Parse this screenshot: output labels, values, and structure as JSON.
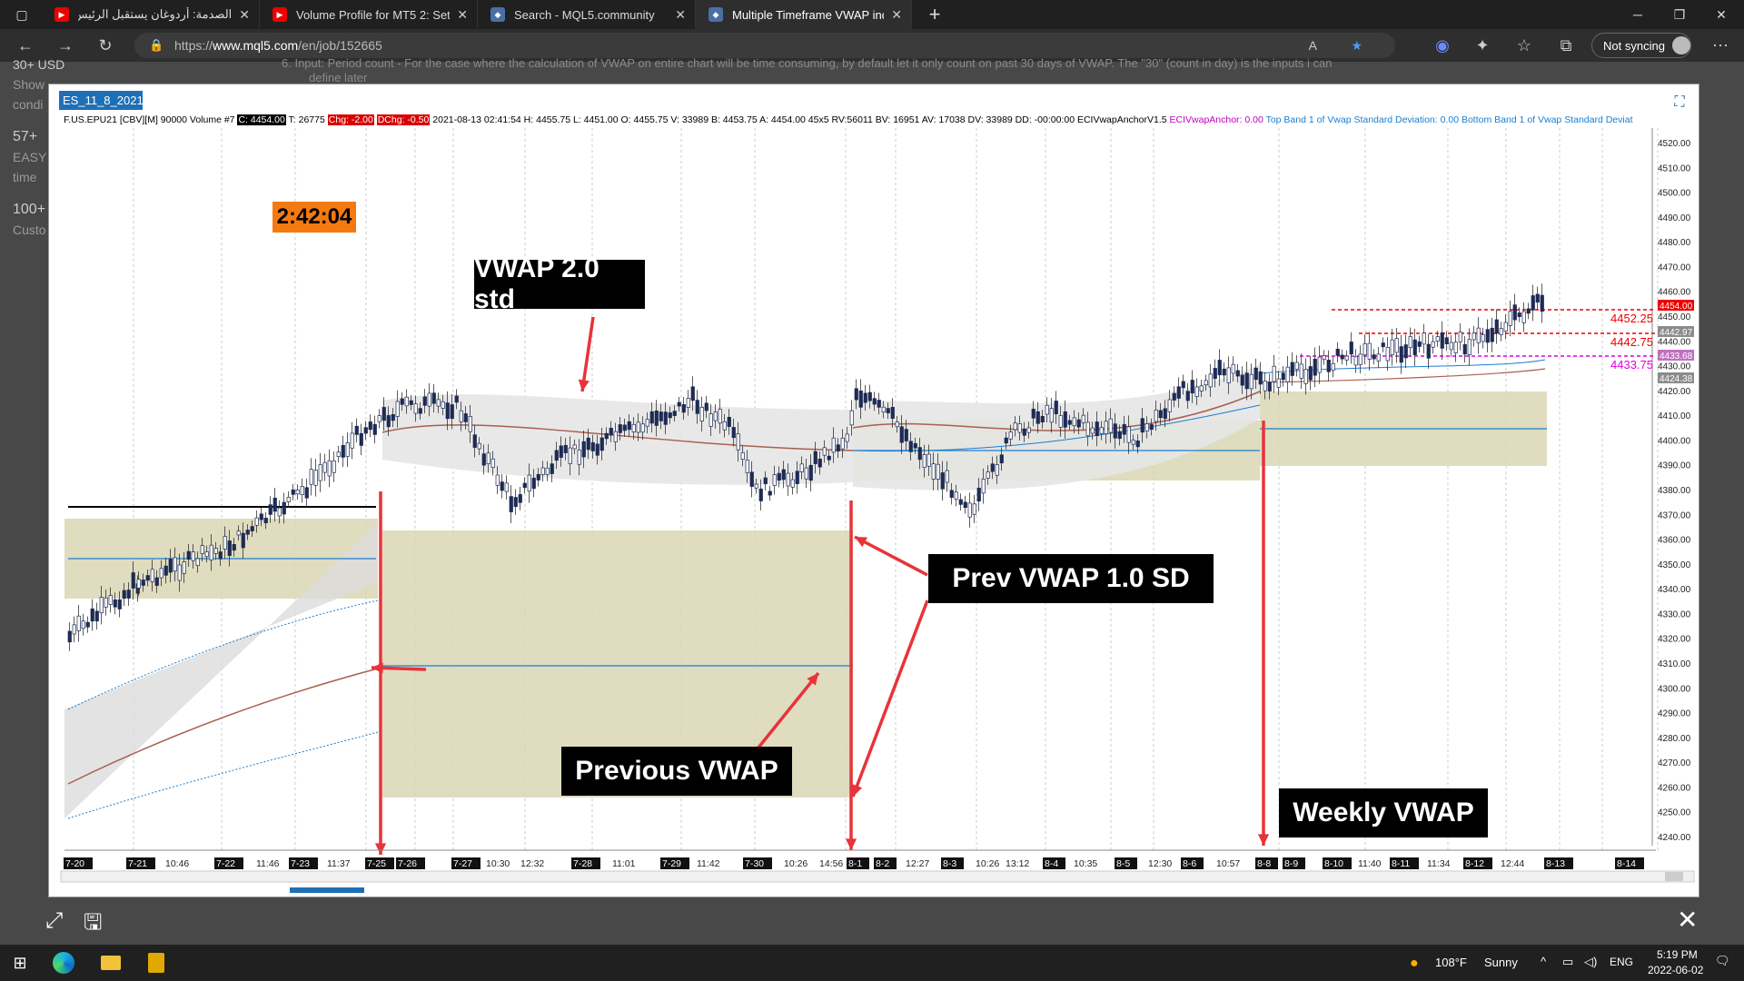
{
  "browser": {
    "tabs": [
      {
        "title": "الصدمة: أردوغان يستقبل الرئيس الإ",
        "icon": "youtube-icon"
      },
      {
        "title": "Volume Profile for MT5 2: Setting",
        "icon": "youtube-icon"
      },
      {
        "title": "Search - MQL5.community",
        "icon": "mql5-icon"
      },
      {
        "title": "Multiple Timeframe VWAP indica",
        "icon": "mql5-icon",
        "active": true
      }
    ],
    "url_prefix": "https://",
    "url_host": "www.mql5.com",
    "url_path": "/en/job/152665",
    "sync_label": "Not syncing"
  },
  "page_bg_text": {
    "line1": "30+ USD",
    "line2": "Show",
    "line3": "condi",
    "line4": "57+",
    "line5": "EASY",
    "line6": "time",
    "line7": "100+",
    "line8": "Custo",
    "top_text": "6. Input: Period count - For the case where the calculation of VWAP on entire chart will be time consuming, by default let it only count on past 30 days of VWAP. The \"30\" (count in day) is the inputs i can",
    "top_text2": "define later"
  },
  "chart": {
    "title_tab": "ES_11_8_2021",
    "info": {
      "symbol": "F.US.EPU21 [CBV][M]  90000 Volume  #7",
      "close": "C: 4454.00",
      "t": "T: 26775",
      "chg": "Chg: -2.00",
      "dchg": "DChg: -0.50",
      "rest": "2021-08-13 02:41:54 H: 4455.75 L: 4451.00 O: 4455.75 V: 33989 B: 4453.75 A: 4454.00 45x5 RV:56011 BV: 16951 AV: 17038 DV: 33989 DD: -00:00:00 ECIVwapAnchorV1.5",
      "anchor": "ECIVwapAnchor: 0.00",
      "bands": "Top Band 1 of Vwap Standard Deviation: 0.00  Bottom Band 1 of Vwap Standard Deviat"
    },
    "timer": "2:42:04",
    "callouts": {
      "vwap2": "VWAP 2.0 std",
      "prev_sd": "Prev VWAP 1.0 SD",
      "prev_vwap": "Previous VWAP",
      "weekly": "Weekly VWAP"
    },
    "price_labels": {
      "last": "4454.00",
      "p1": "4452.25",
      "p2": "4442.75",
      "p3": "4433.75",
      "tag1": "4442.97",
      "tag2": "4433.68",
      "tag3": "4424.38"
    },
    "y_axis": [
      "4520.00",
      "4510.00",
      "4500.00",
      "4490.00",
      "4480.00",
      "4470.00",
      "4460.00",
      "4450.00",
      "4440.00",
      "4430.00",
      "4420.00",
      "4410.00",
      "4400.00",
      "4390.00",
      "4380.00",
      "4370.00",
      "4360.00",
      "4350.00",
      "4340.00",
      "4330.00",
      "4320.00",
      "4310.00",
      "4300.00",
      "4290.00",
      "4280.00",
      "4270.00",
      "4260.00",
      "4250.00",
      "4240.00"
    ],
    "x_axis": [
      {
        "t": "7-20",
        "box": true
      },
      {
        "t": "7-21",
        "box": true
      },
      {
        "t": "10:46"
      },
      {
        "t": "7-22",
        "box": true
      },
      {
        "t": "11:46"
      },
      {
        "t": "7-23",
        "box": true
      },
      {
        "t": "11:37"
      },
      {
        "t": "7-25",
        "box": true
      },
      {
        "t": "7-26",
        "box": true
      },
      {
        "t": "7-27",
        "box": true
      },
      {
        "t": "10:30"
      },
      {
        "t": "12:32"
      },
      {
        "t": "7-28",
        "box": true
      },
      {
        "t": "11:01"
      },
      {
        "t": "7-29",
        "box": true
      },
      {
        "t": "11:42"
      },
      {
        "t": "7-30",
        "box": true
      },
      {
        "t": "10:26"
      },
      {
        "t": "14:56"
      },
      {
        "t": "8-1",
        "box": true
      },
      {
        "t": "8-2",
        "box": true
      },
      {
        "t": "12:27"
      },
      {
        "t": "8-3",
        "box": true
      },
      {
        "t": "10:26"
      },
      {
        "t": "13:12"
      },
      {
        "t": "8-4",
        "box": true
      },
      {
        "t": "10:35"
      },
      {
        "t": "8-5",
        "box": true
      },
      {
        "t": "12:30"
      },
      {
        "t": "8-6",
        "box": true
      },
      {
        "t": "10:57"
      },
      {
        "t": "8-8",
        "box": true
      },
      {
        "t": "8-9",
        "box": true
      },
      {
        "t": "8-10",
        "box": true
      },
      {
        "t": "11:40"
      },
      {
        "t": "8-11",
        "box": true
      },
      {
        "t": "11:34"
      },
      {
        "t": "8-12",
        "box": true
      },
      {
        "t": "12:44"
      },
      {
        "t": "8-13",
        "box": true
      },
      {
        "t": "8-14",
        "box": true
      }
    ]
  },
  "taskbar": {
    "weather_temp": "108°F",
    "weather_desc": "Sunny",
    "lang": "ENG",
    "time": "5:19 PM",
    "date": "2022-06-02"
  },
  "colors": {
    "band_fill": "#d9d6b5",
    "vwap_blue": "#1a7fd0",
    "vwap_brown": "#a86050",
    "red_arrow": "#e8333a",
    "grey_band": "#e6e6e6"
  }
}
